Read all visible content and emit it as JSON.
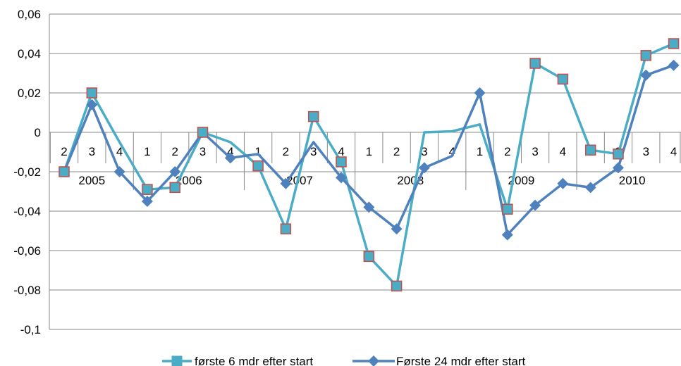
{
  "chart_data": {
    "type": "line",
    "title": "",
    "xlabel": "",
    "ylabel": "",
    "ylim": [
      -0.1,
      0.06
    ],
    "y_ticks": [
      "0,06",
      "0,04",
      "0,02",
      "0",
      "-0,02",
      "-0,04",
      "-0,06",
      "-0,08",
      "-0,1"
    ],
    "y_tick_values": [
      0.06,
      0.04,
      0.02,
      0,
      -0.02,
      -0.04,
      -0.06,
      -0.08,
      -0.1
    ],
    "grid": "horizontal",
    "legend": "bottom",
    "quarters": [
      "2",
      "3",
      "4",
      "1",
      "2",
      "3",
      "4",
      "1",
      "2",
      "3",
      "4",
      "1",
      "2",
      "3",
      "4",
      "1",
      "2",
      "3",
      "4",
      "1",
      "2",
      "3",
      "4"
    ],
    "years": [
      {
        "label": "2005",
        "start": 0,
        "end": 2
      },
      {
        "label": "2006",
        "start": 3,
        "end": 6
      },
      {
        "label": "2007",
        "start": 7,
        "end": 10
      },
      {
        "label": "2008",
        "start": 11,
        "end": 14
      },
      {
        "label": "2009",
        "start": 15,
        "end": 18
      },
      {
        "label": "2010",
        "start": 19,
        "end": 22
      }
    ],
    "series": [
      {
        "name": "første 6 mdr efter start",
        "color": "#4bacc6",
        "marker": "square",
        "marker_fill": "#4bacc6",
        "marker_stroke": "#c0504d",
        "values": [
          -0.02,
          0.02,
          -0.005,
          -0.029,
          -0.028,
          0.0,
          -0.005,
          -0.017,
          -0.049,
          0.008,
          -0.015,
          -0.063,
          -0.078,
          0.0,
          0.0005,
          0.004,
          -0.039,
          0.035,
          0.027,
          -0.009,
          -0.011,
          0.039,
          0.045
        ],
        "markers": [
          true,
          true,
          false,
          true,
          true,
          true,
          false,
          true,
          true,
          true,
          true,
          true,
          true,
          false,
          false,
          false,
          true,
          true,
          true,
          true,
          true,
          true,
          true
        ]
      },
      {
        "name": "Første 24 mdr efter start",
        "color": "#4f81bd",
        "marker": "diamond",
        "values": [
          -0.02,
          0.014,
          -0.02,
          -0.035,
          -0.02,
          0.0,
          -0.013,
          -0.011,
          -0.026,
          -0.005,
          -0.023,
          -0.038,
          -0.049,
          -0.018,
          -0.012,
          0.02,
          -0.052,
          -0.037,
          -0.026,
          -0.028,
          -0.018,
          0.029,
          0.034
        ],
        "markers": [
          true,
          true,
          true,
          true,
          true,
          true,
          true,
          false,
          true,
          false,
          true,
          true,
          true,
          true,
          false,
          true,
          true,
          true,
          true,
          true,
          true,
          true,
          true
        ]
      }
    ]
  }
}
